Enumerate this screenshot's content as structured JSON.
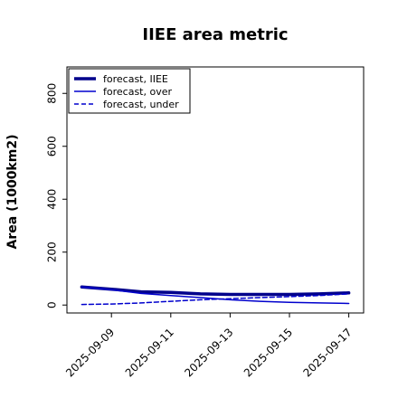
{
  "chart_data": {
    "type": "line",
    "title": "IIEE area metric",
    "ylabel": "Area (1000km2)",
    "xlabel": "",
    "x": [
      "2025-09-08",
      "2025-09-09",
      "2025-09-10",
      "2025-09-11",
      "2025-09-12",
      "2025-09-13",
      "2025-09-14",
      "2025-09-15",
      "2025-09-16",
      "2025-09-17"
    ],
    "xticks": [
      "2025-09-09",
      "2025-09-11",
      "2025-09-13",
      "2025-09-15",
      "2025-09-17"
    ],
    "xtick_colors": [
      "#1a8a1a",
      "#000000",
      "#000000",
      "#000000",
      "#000000"
    ],
    "ylim": [
      -30,
      900
    ],
    "yticks": [
      0,
      200,
      400,
      600,
      800
    ],
    "series": [
      {
        "name": "forecast, IIEE",
        "style": "solid-thick",
        "color": "#00008b",
        "values": [
          68,
          60,
          50,
          48,
          42,
          40,
          40,
          40,
          42,
          46
        ]
      },
      {
        "name": "forecast, over",
        "style": "solid",
        "color": "#0000cd",
        "values": [
          68,
          58,
          44,
          36,
          28,
          20,
          14,
          10,
          8,
          6
        ]
      },
      {
        "name": "forecast, under",
        "style": "dashed",
        "color": "#0000cd",
        "values": [
          2,
          4,
          8,
          14,
          20,
          24,
          28,
          32,
          36,
          42
        ]
      }
    ],
    "legend": "top-left",
    "grid": false
  }
}
